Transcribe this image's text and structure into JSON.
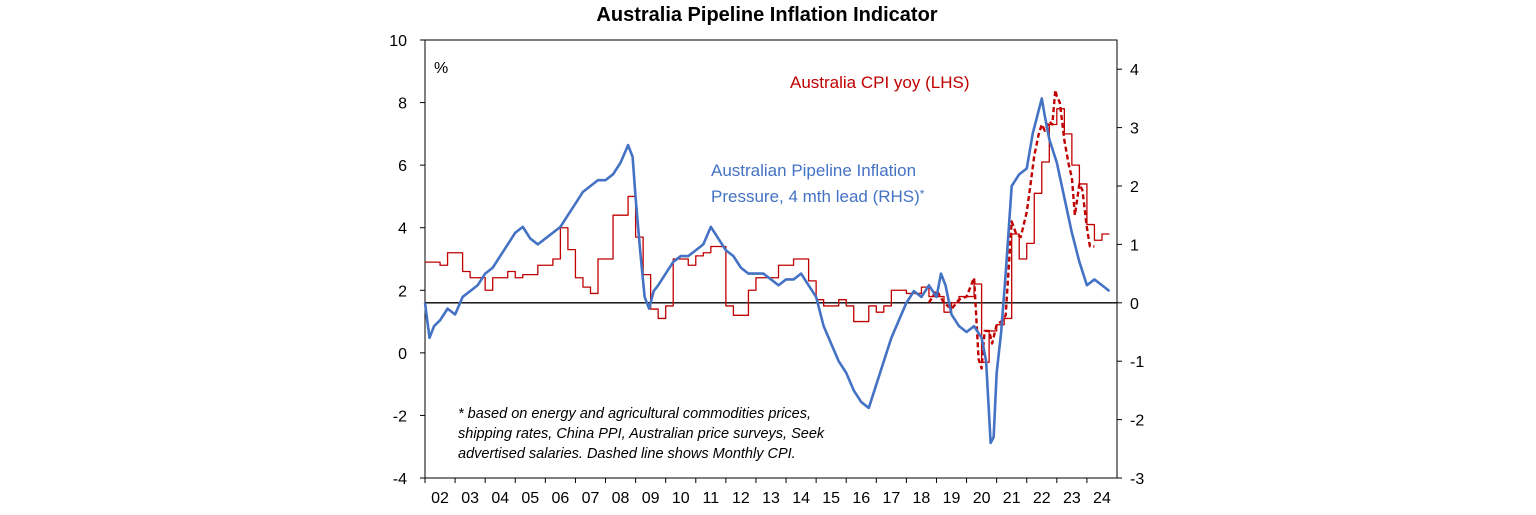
{
  "chart_data": {
    "type": "line",
    "title": "Australia Pipeline Inflation Indicator",
    "unit_label": "%",
    "x_tick_labels": [
      "02",
      "03",
      "04",
      "05",
      "06",
      "07",
      "08",
      "09",
      "10",
      "11",
      "12",
      "13",
      "14",
      "15",
      "16",
      "17",
      "18",
      "19",
      "20",
      "21",
      "22",
      "23",
      "24"
    ],
    "x_range": [
      2002,
      2025
    ],
    "y_left": {
      "range": [
        -4,
        10
      ],
      "ticks": [
        -4,
        -2,
        0,
        2,
        4,
        6,
        8,
        10
      ]
    },
    "y_right": {
      "range": [
        -3,
        4.5
      ],
      "ticks": [
        -3,
        -2,
        -1,
        0,
        1,
        2,
        3,
        4
      ]
    },
    "grid": false,
    "legend": "none",
    "series": [
      {
        "name": "Australia CPI yoy (LHS)",
        "axis": "left",
        "color": "#c00000",
        "style": "step",
        "x": [
          2002.0,
          2002.25,
          2002.5,
          2002.75,
          2003.0,
          2003.25,
          2003.5,
          2003.75,
          2004.0,
          2004.25,
          2004.5,
          2004.75,
          2005.0,
          2005.25,
          2005.5,
          2005.75,
          2006.0,
          2006.25,
          2006.5,
          2006.75,
          2007.0,
          2007.25,
          2007.5,
          2007.75,
          2008.0,
          2008.25,
          2008.5,
          2008.75,
          2009.0,
          2009.25,
          2009.5,
          2009.75,
          2010.0,
          2010.25,
          2010.5,
          2010.75,
          2011.0,
          2011.25,
          2011.5,
          2011.75,
          2012.0,
          2012.25,
          2012.5,
          2012.75,
          2013.0,
          2013.25,
          2013.5,
          2013.75,
          2014.0,
          2014.25,
          2014.5,
          2014.75,
          2015.0,
          2015.25,
          2015.5,
          2015.75,
          2016.0,
          2016.25,
          2016.5,
          2016.75,
          2017.0,
          2017.25,
          2017.5,
          2017.75,
          2018.0,
          2018.25,
          2018.5,
          2018.75,
          2019.0,
          2019.25,
          2019.5,
          2019.75,
          2020.0,
          2020.25,
          2020.5,
          2020.75,
          2021.0,
          2021.25,
          2021.5,
          2021.75,
          2022.0,
          2022.25,
          2022.5,
          2022.75,
          2023.0,
          2023.25,
          2023.5,
          2023.75,
          2024.0,
          2024.25,
          2024.5
        ],
        "y": [
          2.9,
          2.9,
          2.8,
          3.2,
          3.2,
          2.6,
          2.4,
          2.4,
          2.0,
          2.4,
          2.4,
          2.6,
          2.4,
          2.5,
          2.5,
          2.8,
          2.8,
          3.0,
          4.0,
          3.3,
          2.4,
          2.1,
          1.9,
          3.0,
          3.0,
          4.4,
          4.4,
          5.0,
          3.7,
          2.5,
          1.4,
          1.1,
          1.5,
          3.0,
          3.0,
          2.8,
          3.1,
          3.2,
          3.4,
          3.4,
          1.5,
          1.2,
          1.2,
          2.0,
          2.4,
          2.4,
          2.4,
          2.8,
          2.8,
          3.0,
          3.0,
          2.3,
          1.7,
          1.5,
          1.5,
          1.7,
          1.5,
          1.0,
          1.0,
          1.5,
          1.3,
          1.5,
          2.0,
          2.0,
          1.9,
          1.9,
          2.1,
          1.8,
          1.8,
          1.3,
          1.6,
          1.8,
          1.8,
          2.2,
          -0.3,
          0.7,
          0.9,
          1.1,
          3.8,
          3.0,
          3.5,
          5.1,
          6.1,
          7.3,
          7.8,
          7.0,
          6.0,
          5.4,
          4.1,
          3.6,
          3.8
        ],
        "end_x": 2024.75
      },
      {
        "name": "Monthly CPI",
        "axis": "left",
        "color": "#c00000",
        "style": "dashed",
        "x": [
          2018.75,
          2019.0,
          2019.25,
          2019.5,
          2019.75,
          2020.0,
          2020.25,
          2020.4,
          2020.5,
          2020.6,
          2020.75,
          2020.85,
          2021.0,
          2021.15,
          2021.3,
          2021.5,
          2021.65,
          2021.8,
          2022.0,
          2022.1,
          2022.25,
          2022.4,
          2022.5,
          2022.6,
          2022.75,
          2022.85,
          2022.95,
          2023.0,
          2023.1,
          2023.25,
          2023.4,
          2023.5,
          2023.6,
          2023.75,
          2023.85,
          2024.0,
          2024.1,
          2024.25
        ],
        "y": [
          1.6,
          2.0,
          1.6,
          1.4,
          1.7,
          1.8,
          2.4,
          -0.2,
          -0.5,
          0.7,
          0.7,
          0.3,
          0.9,
          1.0,
          1.2,
          4.2,
          3.8,
          3.7,
          4.5,
          5.2,
          6.3,
          7.0,
          7.3,
          7.1,
          7.4,
          7.3,
          8.4,
          8.2,
          8.0,
          6.8,
          6.0,
          5.6,
          4.4,
          5.4,
          5.2,
          4.0,
          3.4,
          3.4
        ]
      },
      {
        "name": "Australian Pipeline Inflation Pressure, 4 mth lead (RHS)*",
        "axis": "right",
        "color": "#4472c4",
        "style": "solid",
        "x": [
          2002.0,
          2002.15,
          2002.3,
          2002.5,
          2002.75,
          2003.0,
          2003.25,
          2003.5,
          2003.75,
          2004.0,
          2004.25,
          2004.5,
          2004.75,
          2005.0,
          2005.25,
          2005.5,
          2005.75,
          2006.0,
          2006.25,
          2006.5,
          2006.75,
          2007.0,
          2007.25,
          2007.5,
          2007.75,
          2008.0,
          2008.25,
          2008.5,
          2008.75,
          2008.9,
          2009.0,
          2009.15,
          2009.3,
          2009.45,
          2009.6,
          2009.75,
          2010.0,
          2010.25,
          2010.5,
          2010.75,
          2011.0,
          2011.25,
          2011.5,
          2011.75,
          2012.0,
          2012.25,
          2012.5,
          2012.75,
          2013.0,
          2013.25,
          2013.5,
          2013.75,
          2014.0,
          2014.25,
          2014.5,
          2014.75,
          2015.0,
          2015.25,
          2015.5,
          2015.75,
          2016.0,
          2016.25,
          2016.5,
          2016.75,
          2017.0,
          2017.25,
          2017.5,
          2017.75,
          2018.0,
          2018.25,
          2018.5,
          2018.75,
          2019.0,
          2019.15,
          2019.3,
          2019.5,
          2019.75,
          2020.0,
          2020.25,
          2020.5,
          2020.65,
          2020.8,
          2020.9,
          2021.0,
          2021.15,
          2021.3,
          2021.5,
          2021.75,
          2022.0,
          2022.2,
          2022.4,
          2022.5,
          2022.6,
          2022.75,
          2023.0,
          2023.25,
          2023.5,
          2023.75,
          2024.0,
          2024.25,
          2024.5,
          2024.75
        ],
        "y": [
          0.0,
          -0.6,
          -0.4,
          -0.3,
          -0.1,
          -0.2,
          0.1,
          0.2,
          0.3,
          0.5,
          0.6,
          0.8,
          1.0,
          1.2,
          1.3,
          1.1,
          1.0,
          1.1,
          1.2,
          1.3,
          1.5,
          1.7,
          1.9,
          2.0,
          2.1,
          2.1,
          2.2,
          2.4,
          2.7,
          2.5,
          1.8,
          0.9,
          0.1,
          -0.1,
          0.2,
          0.3,
          0.5,
          0.7,
          0.8,
          0.8,
          0.9,
          1.0,
          1.3,
          1.1,
          0.9,
          0.8,
          0.6,
          0.5,
          0.5,
          0.5,
          0.4,
          0.3,
          0.4,
          0.4,
          0.5,
          0.3,
          0.1,
          -0.4,
          -0.7,
          -1.0,
          -1.2,
          -1.5,
          -1.7,
          -1.8,
          -1.4,
          -1.0,
          -0.6,
          -0.3,
          0.0,
          0.2,
          0.1,
          0.3,
          0.1,
          0.5,
          0.3,
          -0.2,
          -0.4,
          -0.5,
          -0.4,
          -0.6,
          -1.0,
          -2.4,
          -2.3,
          -1.2,
          -0.5,
          0.5,
          2.0,
          2.2,
          2.3,
          2.9,
          3.3,
          3.5,
          3.2,
          2.8,
          2.4,
          1.8,
          1.2,
          0.7,
          0.3,
          0.4,
          0.3,
          0.2
        ]
      }
    ],
    "annotations": {
      "cpi_label": "Australia CPI yoy (LHS)",
      "pipeline_label_line1": "Australian Pipeline Inflation",
      "pipeline_label_line2": "Pressure, 4 mth lead (RHS)",
      "pipeline_label_star": "*",
      "footnote_line1": "* based on energy and agricultural commodities prices,",
      "footnote_line2": "shipping rates, China PPI, Australian price surveys, Seek",
      "footnote_line3": "advertised salaries. Dashed line shows Monthly CPI."
    }
  }
}
